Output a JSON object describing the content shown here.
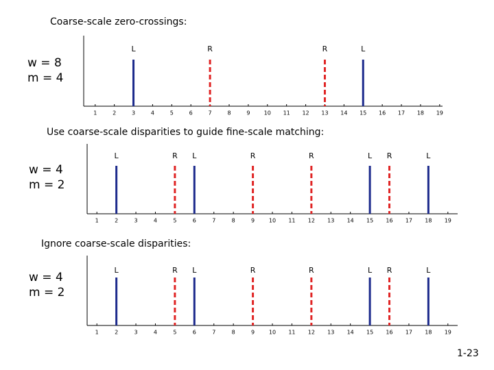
{
  "slide_number": "1-23",
  "chart_data": [
    {
      "type": "stem",
      "title": "Coarse-scale zero-crossings:",
      "annotations": [
        "w = 8",
        "m = 4"
      ],
      "xlim": [
        0.4,
        19.15
      ],
      "xticks": [
        1,
        2,
        3,
        4,
        5,
        6,
        7,
        8,
        9,
        10,
        11,
        12,
        13,
        14,
        15,
        16,
        17,
        18,
        19
      ],
      "markers": [
        {
          "x": 3,
          "label": "L",
          "color": "#1c2a8c",
          "dashed": false
        },
        {
          "x": 7,
          "label": "R",
          "color": "#e02424",
          "dashed": true
        },
        {
          "x": 13,
          "label": "R",
          "color": "#e02424",
          "dashed": true
        },
        {
          "x": 15,
          "label": "L",
          "color": "#1c2a8c",
          "dashed": false
        }
      ]
    },
    {
      "type": "stem",
      "title": "Use coarse-scale disparities to guide fine-scale matching:",
      "annotations": [
        "w = 4",
        "m = 2"
      ],
      "xlim": [
        0.5,
        19.5
      ],
      "xticks": [
        1,
        2,
        3,
        4,
        5,
        6,
        7,
        8,
        9,
        10,
        11,
        12,
        13,
        14,
        15,
        16,
        17,
        18,
        19
      ],
      "markers": [
        {
          "x": 2,
          "label": "L",
          "color": "#1c2a8c",
          "dashed": false
        },
        {
          "x": 5,
          "label": "R",
          "color": "#e02424",
          "dashed": true
        },
        {
          "x": 6,
          "label": "L",
          "color": "#1c2a8c",
          "dashed": false
        },
        {
          "x": 9,
          "label": "R",
          "color": "#e02424",
          "dashed": true
        },
        {
          "x": 12,
          "label": "R",
          "color": "#e02424",
          "dashed": true
        },
        {
          "x": 15,
          "label": "L",
          "color": "#1c2a8c",
          "dashed": false
        },
        {
          "x": 16,
          "label": "R",
          "color": "#e02424",
          "dashed": true
        },
        {
          "x": 18,
          "label": "L",
          "color": "#1c2a8c",
          "dashed": false
        }
      ]
    },
    {
      "type": "stem",
      "title": "Ignore coarse-scale disparities:",
      "annotations": [
        "w = 4",
        "m = 2"
      ],
      "xlim": [
        0.5,
        19.5
      ],
      "xticks": [
        1,
        2,
        3,
        4,
        5,
        6,
        7,
        8,
        9,
        10,
        11,
        12,
        13,
        14,
        15,
        16,
        17,
        18,
        19
      ],
      "markers": [
        {
          "x": 2,
          "label": "L",
          "color": "#1c2a8c",
          "dashed": false
        },
        {
          "x": 5,
          "label": "R",
          "color": "#e02424",
          "dashed": true
        },
        {
          "x": 6,
          "label": "L",
          "color": "#1c2a8c",
          "dashed": false
        },
        {
          "x": 9,
          "label": "R",
          "color": "#e02424",
          "dashed": true
        },
        {
          "x": 12,
          "label": "R",
          "color": "#e02424",
          "dashed": true
        },
        {
          "x": 15,
          "label": "L",
          "color": "#1c2a8c",
          "dashed": false
        },
        {
          "x": 16,
          "label": "R",
          "color": "#e02424",
          "dashed": true
        },
        {
          "x": 18,
          "label": "L",
          "color": "#1c2a8c",
          "dashed": false
        }
      ]
    }
  ]
}
